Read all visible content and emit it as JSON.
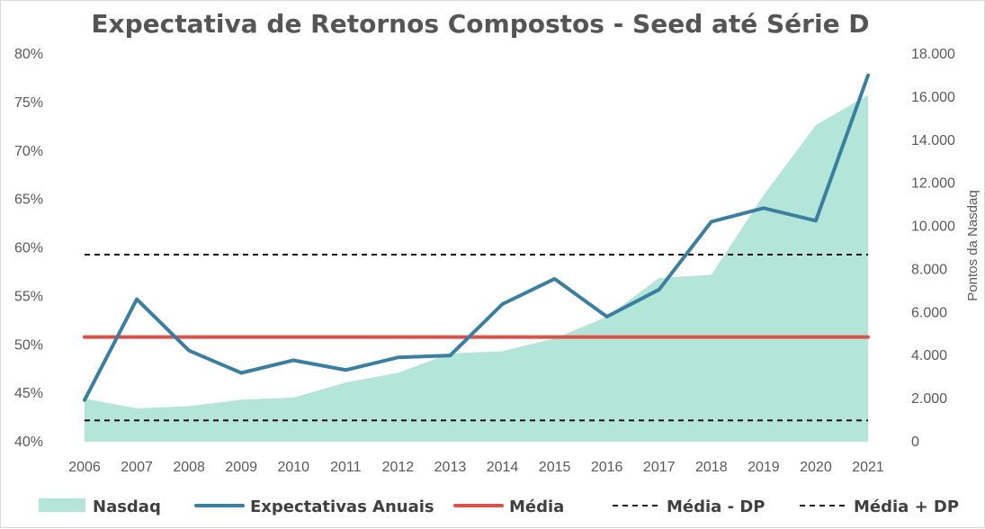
{
  "chart_data": {
    "type": "line",
    "title": "Expectativa de Retornos Compostos - Seed até Série D",
    "x": [
      "2006",
      "2007",
      "2008",
      "2009",
      "2010",
      "2011",
      "2012",
      "2013",
      "2014",
      "2015",
      "2016",
      "2017",
      "2018",
      "2019",
      "2020",
      "2021"
    ],
    "y_left": {
      "ylim": [
        0.4,
        0.8
      ],
      "ticks": [
        0.4,
        0.45,
        0.5,
        0.55,
        0.6,
        0.65,
        0.7,
        0.75,
        0.8
      ],
      "tick_labels": [
        "40%",
        "45%",
        "50%",
        "55%",
        "60%",
        "65%",
        "70%",
        "75%",
        "80%"
      ]
    },
    "y_right": {
      "ylabel": "Pontos da Nasdaq",
      "ylim": [
        0,
        18000
      ],
      "ticks": [
        0,
        2000,
        4000,
        6000,
        8000,
        10000,
        12000,
        14000,
        16000,
        18000
      ],
      "tick_labels": [
        "0",
        "2.000",
        "4.000",
        "6.000",
        "8.000",
        "10.000",
        "12.000",
        "14.000",
        "16.000",
        "18.000"
      ]
    },
    "series": [
      {
        "name": "Nasdaq",
        "type": "area",
        "axis": "right",
        "color": "#b3e5d9",
        "values": [
          2000,
          1550,
          1650,
          1950,
          2050,
          2750,
          3200,
          4100,
          4200,
          4800,
          5800,
          7600,
          7750,
          11450,
          14700,
          16100
        ]
      },
      {
        "name": "Expectativas Anuais",
        "type": "line",
        "axis": "left",
        "color": "#3b7fa0",
        "values": [
          0.443,
          0.547,
          0.494,
          0.471,
          0.484,
          0.474,
          0.487,
          0.489,
          0.542,
          0.568,
          0.529,
          0.557,
          0.627,
          0.641,
          0.628,
          0.778
        ]
      },
      {
        "name": "Média",
        "type": "line",
        "axis": "left",
        "color": "#d9534a",
        "values": [
          0.508,
          0.508,
          0.508,
          0.508,
          0.508,
          0.508,
          0.508,
          0.508,
          0.508,
          0.508,
          0.508,
          0.508,
          0.508,
          0.508,
          0.508,
          0.508
        ]
      },
      {
        "name": "Média - DP",
        "type": "line",
        "axis": "left",
        "dashed": true,
        "color": "#000000",
        "values": [
          0.422,
          0.422,
          0.422,
          0.422,
          0.422,
          0.422,
          0.422,
          0.422,
          0.422,
          0.422,
          0.422,
          0.422,
          0.422,
          0.422,
          0.422,
          0.422
        ]
      },
      {
        "name": "Média + DP",
        "type": "line",
        "axis": "left",
        "dashed": true,
        "color": "#000000",
        "values": [
          0.593,
          0.593,
          0.593,
          0.593,
          0.593,
          0.593,
          0.593,
          0.593,
          0.593,
          0.593,
          0.593,
          0.593,
          0.593,
          0.593,
          0.593,
          0.593
        ]
      }
    ],
    "legend": {
      "position": "bottom",
      "items": [
        "Nasdaq",
        "Expectativas Anuais",
        "Média",
        "Média - DP",
        "Média + DP"
      ]
    },
    "grid": false
  }
}
